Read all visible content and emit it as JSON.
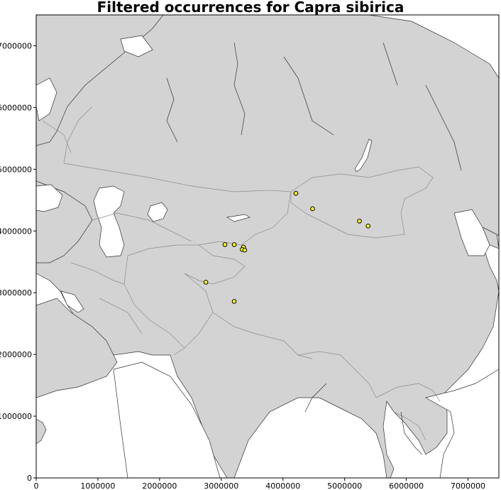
{
  "title": "Filtered occurrences for Capra sibirica",
  "map": {
    "land_color": "#d3d3d3",
    "border_color": "#8c8c8c",
    "coast_color": "#303030",
    "water_color": "#ffffff",
    "marker_fill": "#ffff33",
    "marker_edge": "#000000"
  },
  "chart_data": {
    "type": "scatter",
    "title": "Filtered occurrences for Capra sibirica",
    "xlim": [
      0,
      7500000
    ],
    "ylim": [
      0,
      7500000
    ],
    "xticks": [
      "0",
      "1000000",
      "2000000",
      "3000000",
      "4000000",
      "5000000",
      "6000000",
      "7000000"
    ],
    "yticks": [
      "0",
      "1000000",
      "2000000",
      "3000000",
      "4000000",
      "5000000",
      "6000000",
      "7000000"
    ],
    "xtick_values": [
      0,
      1000000,
      2000000,
      3000000,
      4000000,
      5000000,
      6000000,
      7000000
    ],
    "ytick_values": [
      0,
      1000000,
      2000000,
      3000000,
      4000000,
      5000000,
      6000000,
      7000000
    ],
    "grid": false,
    "points": [
      {
        "x": 4210000,
        "y": 4610000
      },
      {
        "x": 4480000,
        "y": 4360000
      },
      {
        "x": 5240000,
        "y": 4160000
      },
      {
        "x": 5380000,
        "y": 4080000
      },
      {
        "x": 3060000,
        "y": 3780000
      },
      {
        "x": 3210000,
        "y": 3780000
      },
      {
        "x": 3360000,
        "y": 3740000
      },
      {
        "x": 3340000,
        "y": 3700000
      },
      {
        "x": 3380000,
        "y": 3690000
      },
      {
        "x": 2750000,
        "y": 3170000
      },
      {
        "x": 3210000,
        "y": 2860000
      }
    ]
  }
}
